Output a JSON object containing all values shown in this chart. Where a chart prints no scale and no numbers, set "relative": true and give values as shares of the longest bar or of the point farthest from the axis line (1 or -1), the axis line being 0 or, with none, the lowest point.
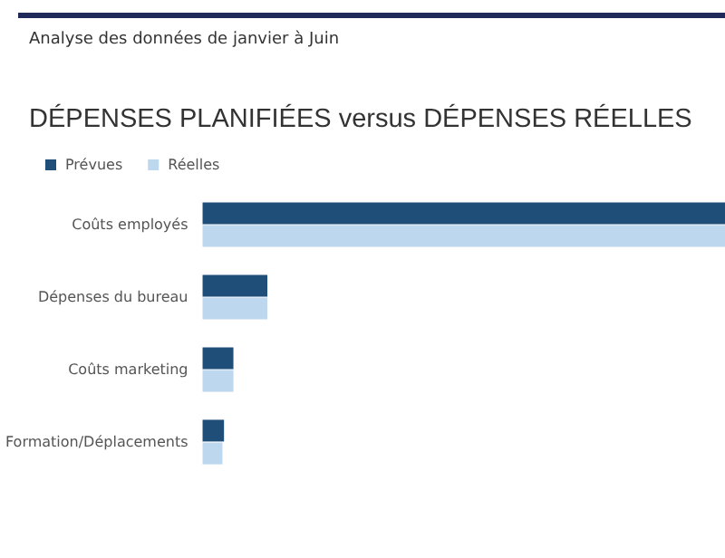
{
  "chart_data": {
    "type": "bar",
    "orientation": "horizontal",
    "relative": true,
    "title": "DÉPENSES PLANIFIÉES versus DÉPENSES RÉELLES",
    "subtitle": "Analyse des données de janvier à Juin",
    "categories": [
      "Coûts employés",
      "Dépenses du bureau",
      "Coûts marketing",
      "Formation/Déplacements"
    ],
    "series": [
      {
        "name": "Prévues",
        "color": "#1f4e79",
        "values": [
          1,
          0.124,
          0.059,
          0.041
        ]
      },
      {
        "name": "Réelles",
        "color": "#bdd7ee",
        "values": [
          1,
          0.124,
          0.059,
          0.038
        ]
      }
    ],
    "legend": "top left"
  }
}
